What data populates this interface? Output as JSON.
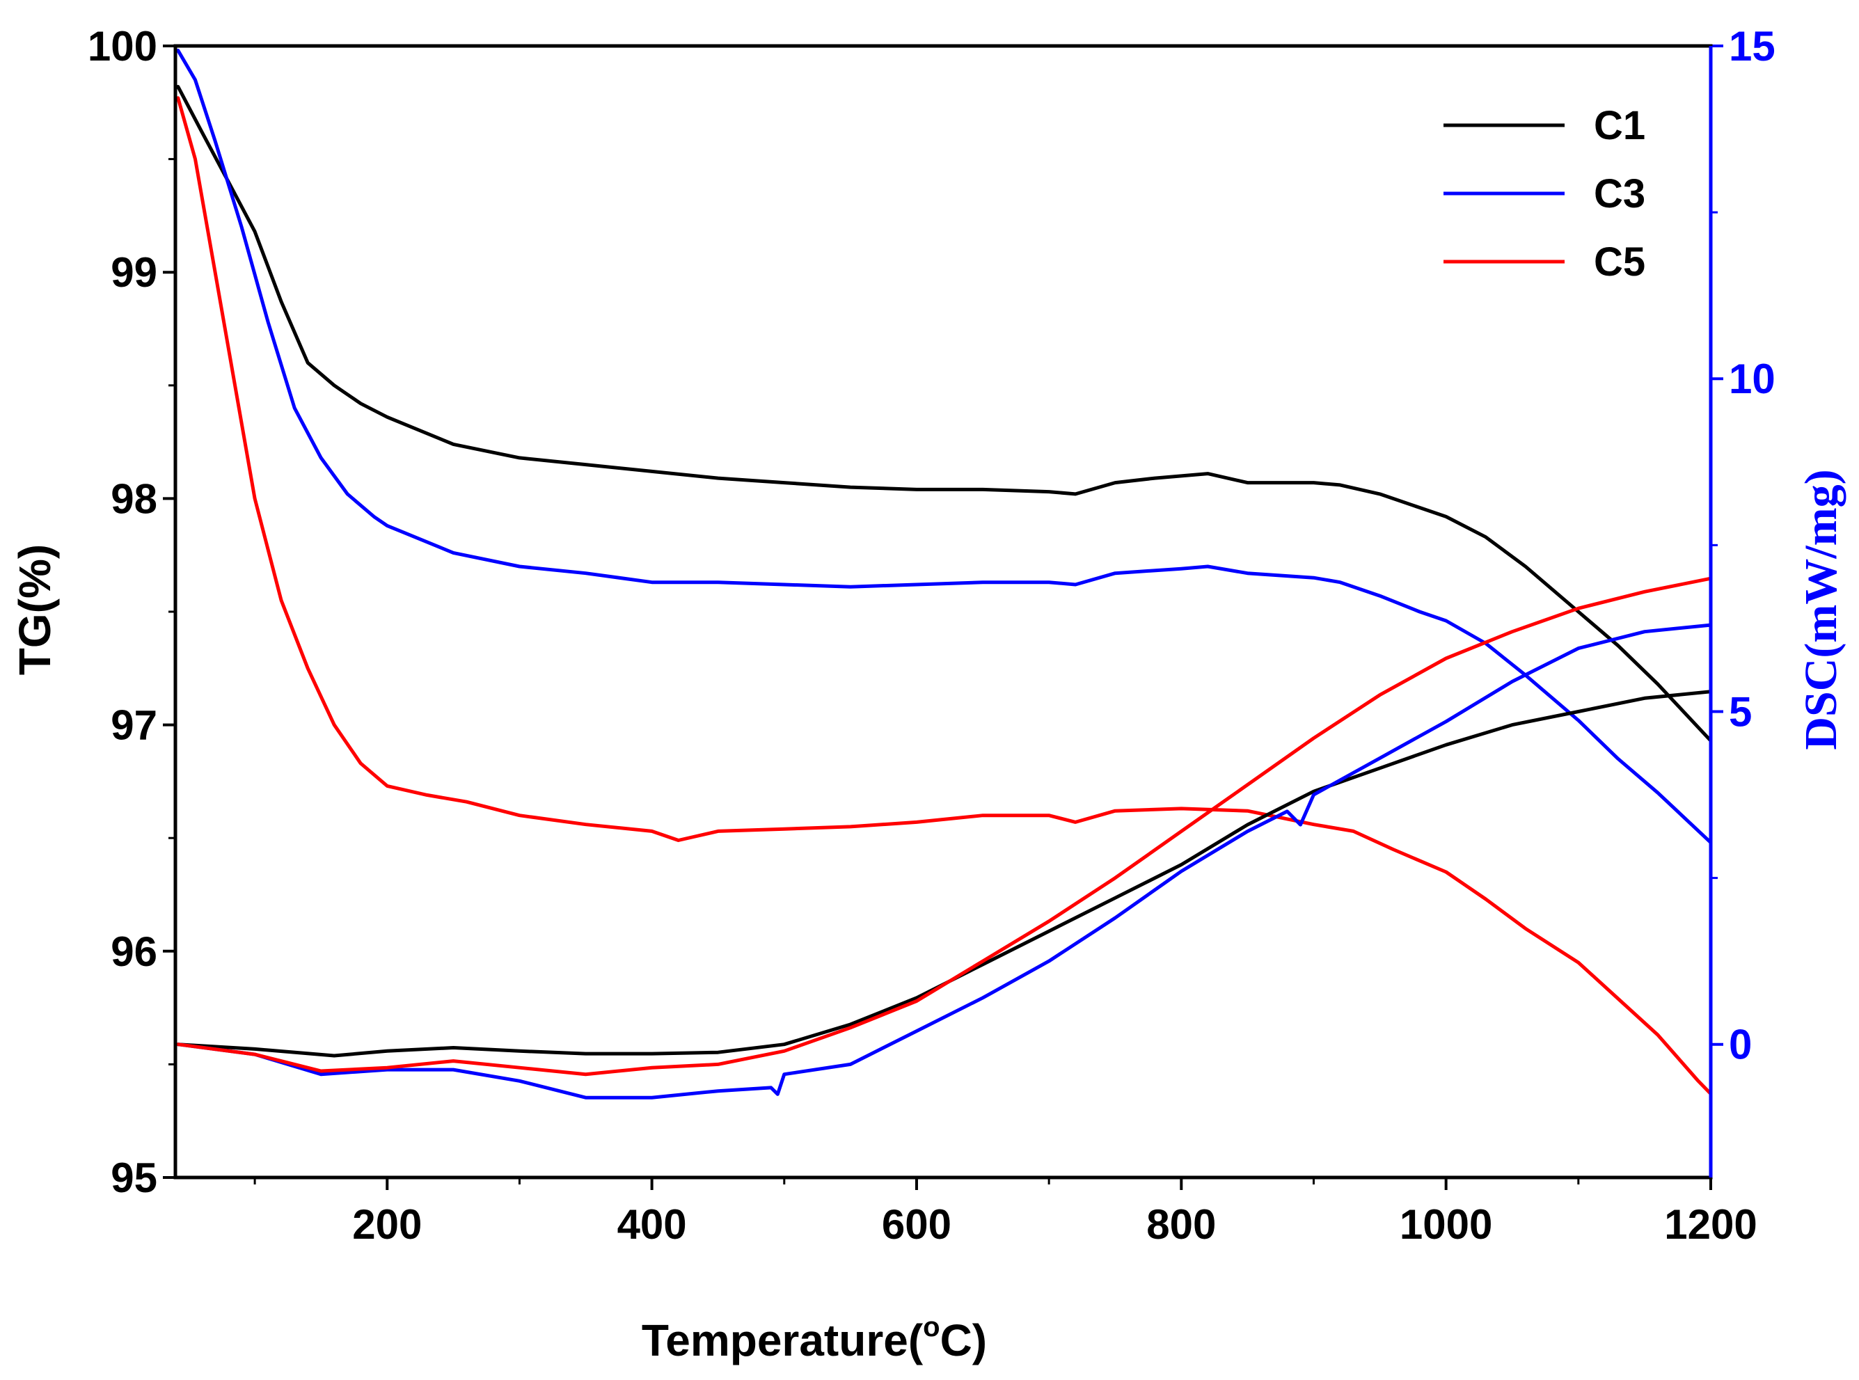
{
  "chart_data": {
    "type": "line",
    "xlabel_main": "Temperature(",
    "xlabel_sup": "o",
    "xlabel_end": "C)",
    "ylabel_left": "TG(%)",
    "ylabel_right": "DSC(mW/mg)",
    "xlim": [
      40,
      1200
    ],
    "ylim_left": [
      95,
      100
    ],
    "ylim_right": [
      -2,
      15
    ],
    "x_ticks": [
      {
        "value": 200,
        "label": "200"
      },
      {
        "value": 400,
        "label": "400"
      },
      {
        "value": 600,
        "label": "600"
      },
      {
        "value": 800,
        "label": "800"
      },
      {
        "value": 1000,
        "label": "1000"
      },
      {
        "value": 1200,
        "label": "1200"
      }
    ],
    "y_left_ticks": [
      {
        "value": 95,
        "label": "95"
      },
      {
        "value": 96,
        "label": "96"
      },
      {
        "value": 97,
        "label": "97"
      },
      {
        "value": 98,
        "label": "98"
      },
      {
        "value": 99,
        "label": "99"
      },
      {
        "value": 100,
        "label": "100"
      }
    ],
    "y_right_ticks": [
      {
        "value": 0,
        "label": "0"
      },
      {
        "value": 5,
        "label": "5"
      },
      {
        "value": 10,
        "label": "10"
      },
      {
        "value": 15,
        "label": "15"
      }
    ],
    "legend": [
      {
        "name": "C1",
        "color": "#000000"
      },
      {
        "name": "C3",
        "color": "#0000ff"
      },
      {
        "name": "C5",
        "color": "#ff0000"
      }
    ],
    "series": [
      {
        "name": "C1 TG",
        "sample": "C1",
        "axis": "left",
        "color": "#000000",
        "x": [
          42,
          60,
          80,
          100,
          120,
          140,
          160,
          180,
          200,
          250,
          300,
          350,
          400,
          450,
          500,
          550,
          600,
          650,
          700,
          720,
          750,
          780,
          800,
          820,
          850,
          900,
          920,
          950,
          980,
          1000,
          1030,
          1060,
          1100,
          1130,
          1160,
          1200
        ],
        "y": [
          99.82,
          99.62,
          99.4,
          99.18,
          98.87,
          98.6,
          98.5,
          98.42,
          98.36,
          98.24,
          98.18,
          98.15,
          98.12,
          98.09,
          98.07,
          98.05,
          98.04,
          98.04,
          98.03,
          98.02,
          98.07,
          98.09,
          98.1,
          98.11,
          98.07,
          98.07,
          98.06,
          98.02,
          97.96,
          97.92,
          97.83,
          97.7,
          97.5,
          97.35,
          97.18,
          96.93
        ]
      },
      {
        "name": "C3 TG",
        "sample": "C3",
        "axis": "left",
        "color": "#0000ff",
        "x": [
          42,
          55,
          70,
          90,
          110,
          130,
          150,
          170,
          190,
          200,
          250,
          300,
          350,
          400,
          450,
          500,
          550,
          600,
          650,
          700,
          720,
          750,
          800,
          820,
          850,
          900,
          920,
          950,
          980,
          1000,
          1030,
          1060,
          1100,
          1130,
          1160,
          1200
        ],
        "y": [
          99.98,
          99.85,
          99.58,
          99.2,
          98.78,
          98.4,
          98.18,
          98.02,
          97.92,
          97.88,
          97.76,
          97.7,
          97.67,
          97.63,
          97.63,
          97.62,
          97.61,
          97.62,
          97.63,
          97.63,
          97.62,
          97.67,
          97.69,
          97.7,
          97.67,
          97.65,
          97.63,
          97.57,
          97.5,
          97.46,
          97.36,
          97.22,
          97.02,
          96.85,
          96.7,
          96.48
        ]
      },
      {
        "name": "C5 TG",
        "sample": "C5",
        "axis": "left",
        "color": "#ff0000",
        "x": [
          42,
          55,
          70,
          85,
          100,
          120,
          140,
          160,
          180,
          200,
          230,
          260,
          300,
          350,
          400,
          420,
          450,
          500,
          550,
          600,
          650,
          700,
          720,
          750,
          800,
          850,
          900,
          930,
          960,
          1000,
          1030,
          1060,
          1100,
          1130,
          1160,
          1190,
          1200
        ],
        "y": [
          99.77,
          99.5,
          99.0,
          98.5,
          98.0,
          97.55,
          97.25,
          97.0,
          96.83,
          96.73,
          96.69,
          96.66,
          96.6,
          96.56,
          96.53,
          96.49,
          96.53,
          96.54,
          96.55,
          96.57,
          96.6,
          96.6,
          96.57,
          96.62,
          96.63,
          96.62,
          96.56,
          96.53,
          96.45,
          96.35,
          96.23,
          96.1,
          95.95,
          95.79,
          95.63,
          95.43,
          95.37
        ]
      },
      {
        "name": "C1 DSC",
        "sample": "C1",
        "axis": "right",
        "color": "#000000",
        "x": [
          42,
          100,
          160,
          200,
          250,
          300,
          350,
          400,
          450,
          500,
          550,
          600,
          650,
          700,
          750,
          800,
          850,
          900,
          950,
          1000,
          1050,
          1100,
          1150,
          1200
        ],
        "y": [
          0.0,
          -0.07,
          -0.17,
          -0.1,
          -0.05,
          -0.1,
          -0.14,
          -0.14,
          -0.12,
          0.0,
          0.3,
          0.7,
          1.2,
          1.7,
          2.2,
          2.7,
          3.3,
          3.8,
          4.15,
          4.5,
          4.8,
          5.0,
          5.2,
          5.3
        ]
      },
      {
        "name": "C3 DSC",
        "sample": "C3",
        "axis": "right",
        "color": "#0000ff",
        "x": [
          42,
          100,
          150,
          200,
          250,
          300,
          350,
          400,
          450,
          490,
          495,
          500,
          550,
          600,
          650,
          700,
          750,
          800,
          850,
          880,
          890,
          900,
          950,
          1000,
          1050,
          1100,
          1150,
          1200
        ],
        "y": [
          0.0,
          -0.15,
          -0.45,
          -0.38,
          -0.38,
          -0.55,
          -0.8,
          -0.8,
          -0.7,
          -0.65,
          -0.75,
          -0.45,
          -0.3,
          0.2,
          0.7,
          1.25,
          1.9,
          2.6,
          3.2,
          3.5,
          3.3,
          3.75,
          4.3,
          4.85,
          5.45,
          5.95,
          6.2,
          6.3
        ]
      },
      {
        "name": "C5 DSC",
        "sample": "C5",
        "axis": "right",
        "color": "#ff0000",
        "x": [
          42,
          100,
          150,
          200,
          250,
          300,
          350,
          400,
          450,
          500,
          550,
          600,
          650,
          700,
          750,
          800,
          850,
          900,
          950,
          1000,
          1050,
          1100,
          1150,
          1200
        ],
        "y": [
          0.0,
          -0.15,
          -0.4,
          -0.35,
          -0.25,
          -0.35,
          -0.45,
          -0.35,
          -0.3,
          -0.1,
          0.25,
          0.65,
          1.25,
          1.85,
          2.5,
          3.2,
          3.9,
          4.6,
          5.25,
          5.8,
          6.2,
          6.55,
          6.8,
          7.0
        ]
      }
    ]
  }
}
